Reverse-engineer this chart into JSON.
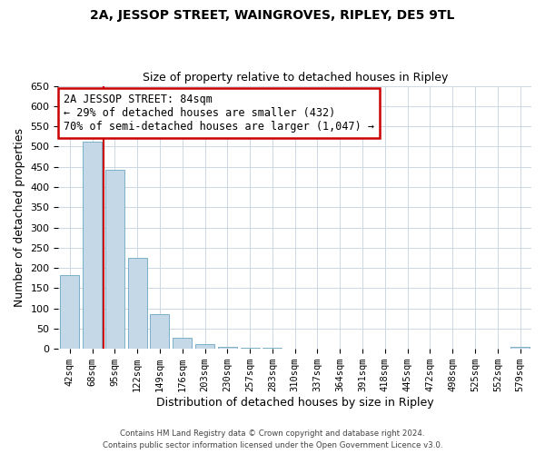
{
  "title": "2A, JESSOP STREET, WAINGROVES, RIPLEY, DE5 9TL",
  "subtitle": "Size of property relative to detached houses in Ripley",
  "xlabel": "Distribution of detached houses by size in Ripley",
  "ylabel": "Number of detached properties",
  "bar_labels": [
    "42sqm",
    "68sqm",
    "95sqm",
    "122sqm",
    "149sqm",
    "176sqm",
    "203sqm",
    "230sqm",
    "257sqm",
    "283sqm",
    "310sqm",
    "337sqm",
    "364sqm",
    "391sqm",
    "418sqm",
    "445sqm",
    "472sqm",
    "498sqm",
    "525sqm",
    "552sqm",
    "579sqm"
  ],
  "bar_values": [
    183,
    511,
    443,
    226,
    85,
    27,
    12,
    4,
    3,
    2,
    0,
    0,
    0,
    0,
    0,
    0,
    0,
    0,
    0,
    0,
    4
  ],
  "bar_color": "#c5d8e8",
  "bar_edge_color": "#7aafc8",
  "vline_color": "#cc0000",
  "vline_x_index": 1,
  "ylim": [
    0,
    650
  ],
  "yticks": [
    0,
    50,
    100,
    150,
    200,
    250,
    300,
    350,
    400,
    450,
    500,
    550,
    600,
    650
  ],
  "annotation_text_line1": "2A JESSOP STREET: 84sqm",
  "annotation_text_line2": "← 29% of detached houses are smaller (432)",
  "annotation_text_line3": "70% of semi-detached houses are larger (1,047) →",
  "annotation_box_color": "#ffffff",
  "annotation_box_edge_color": "#cc0000",
  "footer_line1": "Contains HM Land Registry data © Crown copyright and database right 2024.",
  "footer_line2": "Contains public sector information licensed under the Open Government Licence v3.0.",
  "background_color": "#ffffff",
  "grid_color": "#ccd8e4"
}
